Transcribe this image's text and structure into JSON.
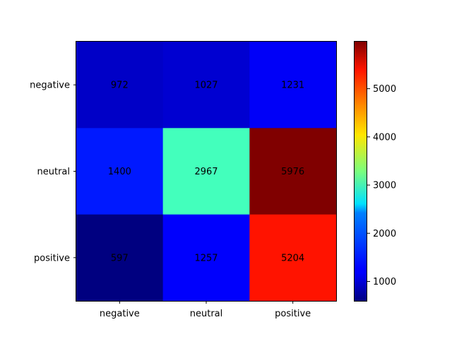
{
  "chart_data": {
    "type": "heatmap",
    "title": "",
    "xlabel": "",
    "ylabel": "",
    "x_categories": [
      "negative",
      "neutral",
      "positive"
    ],
    "y_categories": [
      "negative",
      "neutral",
      "positive"
    ],
    "values": [
      [
        972,
        1027,
        1231
      ],
      [
        1400,
        2967,
        5976
      ],
      [
        597,
        1257,
        5204
      ]
    ],
    "colormap": "jet",
    "vmin": 597,
    "vmax": 5976,
    "colorbar_ticks": [
      1000,
      2000,
      3000,
      4000,
      5000
    ],
    "colorbar_tick_labels": [
      "1000",
      "2000",
      "3000",
      "4000",
      "5000"
    ],
    "annotation_color": "#000000"
  }
}
